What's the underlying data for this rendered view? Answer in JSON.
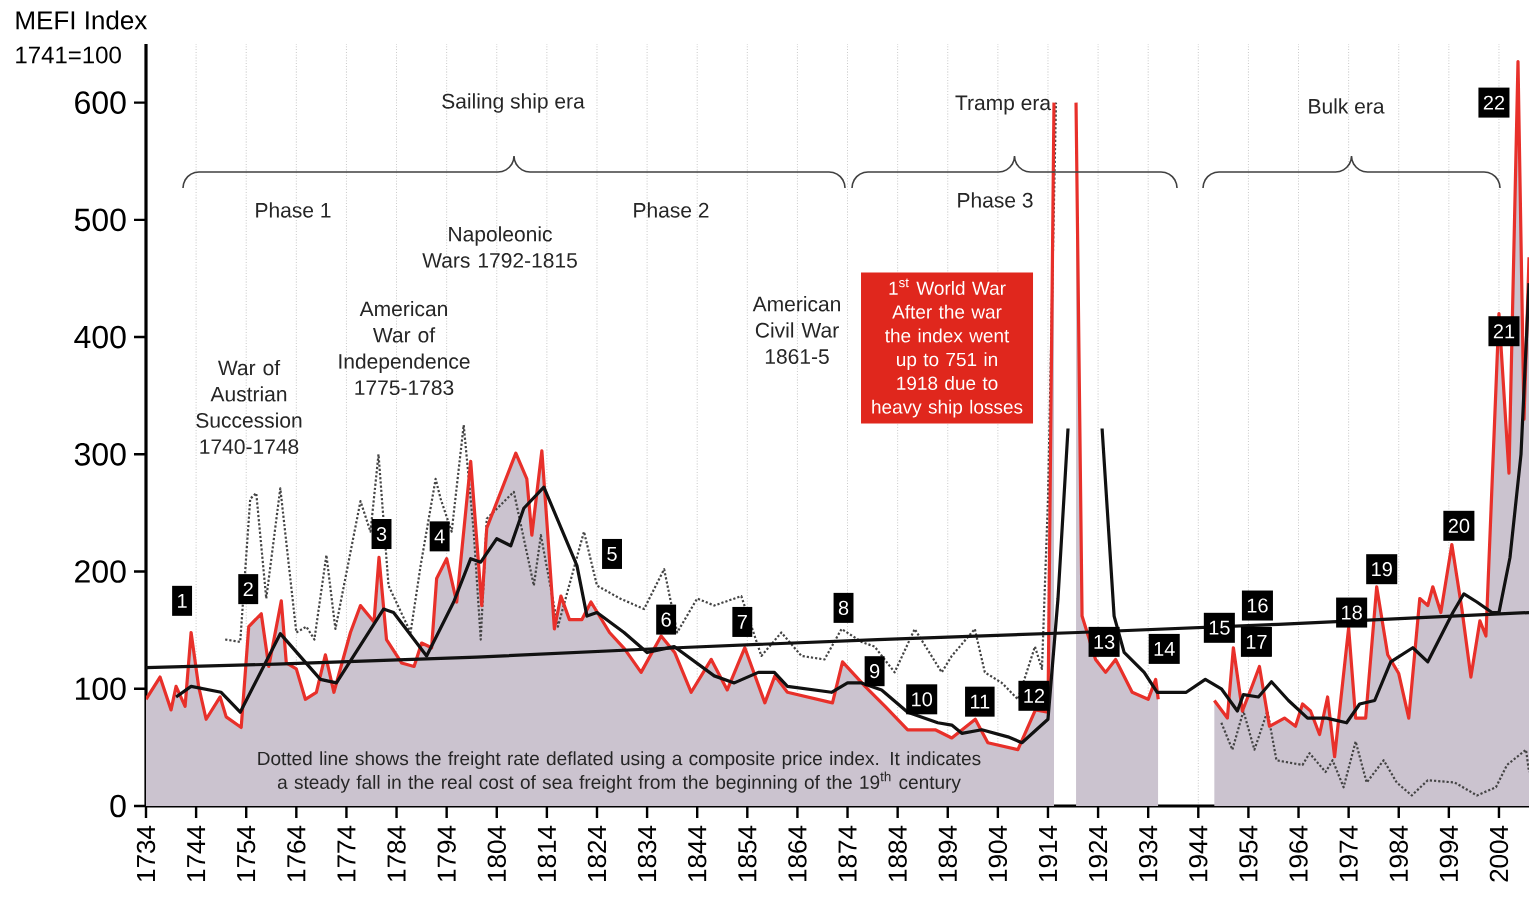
{
  "chart_data": {
    "type": "area",
    "title": "MEFI Index",
    "subtitle": "1741=100",
    "xlim": [
      1734,
      2010
    ],
    "ylim": [
      0,
      650
    ],
    "xticks": [
      1734,
      1744,
      1754,
      1764,
      1774,
      1784,
      1794,
      1804,
      1814,
      1824,
      1834,
      1844,
      1854,
      1864,
      1874,
      1884,
      1894,
      1904,
      1914,
      1924,
      1934,
      1944,
      1954,
      1964,
      1974,
      1984,
      1994,
      2004
    ],
    "yticks": [
      0,
      100,
      200,
      300,
      400,
      500,
      600
    ],
    "grid": "x",
    "series": [
      {
        "type": "line",
        "line_style": "dotted",
        "color": "#444444",
        "x": [
          1749.8,
          1752.8,
          1754.8,
          1756,
          1758,
          1760.8,
          1764,
          1766,
          1767.6,
          1770,
          1771.8,
          1776.8,
          1778.8,
          1780.4,
          1782.4,
          1786.8,
          1788.8,
          1791.8,
          1792.8,
          1795,
          1797.4,
          1799.4,
          1800.8,
          1802,
          1807.4,
          1811.4,
          1812.8,
          1816.2,
          1821.4,
          1824,
          1828.6,
          1833.4,
          1837.4,
          1840,
          1844,
          1847.4,
          1852.8,
          1856.8,
          1860.8,
          1864.8,
          1869.4,
          1872.8,
          1876.8,
          1879.4,
          1883.4,
          1887.4,
          1892.8,
          1894.8,
          1899.4,
          1901.4,
          1904.8,
          1908,
          1911.4,
          1912.8,
          1914,
          1915.6,
          1917.5,
          1919.5,
          1920.8,
          1924.8,
          1928.2,
          1935.4,
          1940,
          1948.6,
          1950.8,
          1953,
          1955.2,
          1957.8,
          1959.6,
          1964.8,
          1966.2,
          1969.4,
          1970.8,
          1973,
          1975.4,
          1977.6,
          1981,
          1983.6,
          1986.6,
          1989.8,
          1995.2,
          1999.6,
          2003.4,
          2005.6,
          2009.4,
          2010
        ],
        "values": [
          142,
          140,
          262,
          267,
          177,
          271,
          148,
          153,
          142,
          214,
          151,
          260,
          234,
          300,
          188,
          148,
          205,
          279,
          262,
          234,
          325,
          234,
          142,
          245,
          268,
          188,
          231,
          153,
          234,
          188,
          177,
          168,
          202,
          148,
          177,
          171,
          179,
          128,
          148,
          128,
          125,
          151,
          140,
          136,
          114,
          151,
          114,
          128,
          151,
          114,
          105,
          91,
          136,
          117,
          262,
          600,
          null,
          null,
          null,
          null,
          null,
          null,
          null,
          71,
          48,
          81,
          48,
          81,
          39,
          35,
          45,
          29,
          39,
          16,
          55,
          20,
          39,
          20,
          9,
          22,
          20,
          9,
          16,
          35,
          48,
          29
        ]
      },
      {
        "color": "#e8302a",
        "x": [
          1734,
          1736.8,
          1739,
          1740,
          1741.8,
          1743,
          1744.5,
          1746,
          1748.8,
          1750,
          1753,
          1754.5,
          1757,
          1758.5,
          1761,
          1762,
          1764,
          1765.8,
          1768,
          1769.8,
          1771.5,
          1774.8,
          1776.8,
          1779.5,
          1780.5,
          1782,
          1785,
          1787.5,
          1789,
          1791,
          1792,
          1794,
          1796,
          1798.8,
          1801,
          1802,
          1807.8,
          1810,
          1811,
          1813,
          1815.5,
          1816.8,
          1818.5,
          1821,
          1822.8,
          1826.5,
          1829.5,
          1832.8,
          1836.8,
          1839.5,
          1842.8,
          1846.8,
          1850,
          1853.5,
          1857.5,
          1859.5,
          1862,
          1871,
          1873,
          1877.5,
          1881.5,
          1886,
          1891.5,
          1894.8,
          1899.5,
          1902,
          1908,
          1911.5,
          1914,
          1915.2,
          1918,
          1919.6,
          1920.8,
          1923.5,
          1925.5,
          1927.5,
          1930.8,
          1934,
          1935.5,
          1936,
          1940,
          1947.2,
          1949.8,
          1951,
          1952.8,
          1954.8,
          1956.2,
          1958.2,
          1961.2,
          1963.4,
          1964.8,
          1966.4,
          1968.2,
          1969.8,
          1971.2,
          1974,
          1975.4,
          1977.4,
          1979.6,
          1981.8,
          1984,
          1986,
          1988.2,
          1989.8,
          1990.8,
          1992.4,
          1994.6,
          1996.6,
          1998.4,
          2000.2,
          2001.4,
          2004,
          2006,
          2007.8,
          2009,
          2010
        ],
        "values": [
          91,
          110,
          82,
          102,
          85,
          148,
          102,
          74,
          93,
          76,
          67,
          153,
          164,
          119,
          175,
          122,
          117,
          91,
          97,
          129,
          97,
          148,
          171,
          157,
          212,
          142,
          122,
          119,
          139,
          135,
          194,
          211,
          174,
          294,
          171,
          237,
          301,
          279,
          231,
          303,
          151,
          179,
          159,
          159,
          174,
          148,
          134,
          114,
          145,
          131,
          97,
          125,
          99,
          135,
          88,
          111,
          97,
          88,
          123,
          102,
          85,
          65,
          65,
          58,
          74,
          54,
          48,
          82,
          80,
          600,
          null,
          600,
          162,
          125,
          114,
          125,
          97,
          91,
          108,
          91,
          null,
          90,
          75,
          135,
          81,
          103,
          119,
          68,
          75,
          68,
          87,
          81,
          61,
          93,
          42,
          152,
          75,
          75,
          187,
          129,
          113,
          75,
          177,
          171,
          187,
          165,
          223,
          168,
          110,
          158,
          145,
          420,
          284,
          635,
          330,
          468
        ]
      },
      {
        "type": "line",
        "color": "#111111",
        "x": [
          1734,
          1760,
          1800,
          1840,
          1880,
          1920,
          1960,
          2010
        ],
        "values": [
          118,
          121,
          127,
          135,
          142,
          148,
          155,
          165
        ]
      },
      {
        "type": "line",
        "color": "#111111",
        "x": [
          1740,
          1743,
          1749,
          1752.8,
          1760.8,
          1768.8,
          1772,
          1781.4,
          1783.4,
          1790,
          1795.4,
          1798.8,
          1800.8,
          1804,
          1806.8,
          1809.4,
          1813.4,
          1820,
          1822,
          1824,
          1829.4,
          1834,
          1839.4,
          1847.4,
          1851.4,
          1856.2,
          1859.4,
          1862,
          1870.8,
          1874,
          1876.8,
          1880.8,
          1886,
          1892,
          1894.8,
          1896.8,
          1900.8,
          1906,
          1908.8,
          1914,
          1916,
          1918,
          1921,
          1924.8,
          1927.2,
          1929.2,
          1933.2,
          1935.8,
          1941.6,
          1945.4,
          1948.6,
          1951.8,
          1953,
          1956,
          1958.6,
          1962,
          1965.8,
          1969.6,
          1973.6,
          1976.2,
          1979.2,
          1982.4,
          1986.8,
          1989.8,
          1994.8,
          1997,
          1999.6,
          2002.6,
          2004,
          2006.2,
          2008.4,
          2010
        ],
        "values": [
          93,
          102,
          97,
          80,
          147,
          108,
          105,
          168,
          165,
          128,
          174,
          211,
          208,
          228,
          222,
          254,
          272,
          205,
          162,
          165,
          148,
          131,
          136,
          111,
          105,
          114,
          114,
          102,
          97,
          105,
          105,
          99,
          80,
          71,
          69,
          62,
          65,
          59,
          54,
          74,
          177,
          322,
          null,
          322,
          162,
          131,
          114,
          97,
          97,
          108,
          100,
          81,
          95,
          93,
          106,
          90,
          75,
          75,
          71,
          87,
          90,
          123,
          135,
          123,
          165,
          181,
          174,
          165,
          165,
          212,
          300,
          446
        ]
      }
    ],
    "annotations": [
      {
        "text": "1",
        "x": 1741.2,
        "y": 175
      },
      {
        "text": "2",
        "x": 1754.4,
        "y": 185
      },
      {
        "text": "3",
        "x": 1781,
        "y": 232
      },
      {
        "text": "4",
        "x": 1792.6,
        "y": 230
      },
      {
        "text": "5",
        "x": 1827,
        "y": 215
      },
      {
        "text": "6",
        "x": 1837.8,
        "y": 159
      },
      {
        "text": "7",
        "x": 1853,
        "y": 157
      },
      {
        "text": "8",
        "x": 1873.2,
        "y": 169
      },
      {
        "text": "9",
        "x": 1879.4,
        "y": 115
      },
      {
        "text": "10",
        "x": 1888.8,
        "y": 91
      },
      {
        "text": "11",
        "x": 1900.4,
        "y": 89
      },
      {
        "text": "12",
        "x": 1911.2,
        "y": 94
      },
      {
        "text": "13",
        "x": 1925.2,
        "y": 140
      },
      {
        "text": "14",
        "x": 1937.2,
        "y": 134
      },
      {
        "text": "15",
        "x": 1948.2,
        "y": 152
      },
      {
        "text": "16",
        "x": 1955.8,
        "y": 171
      },
      {
        "text": "17",
        "x": 1955.6,
        "y": 140
      },
      {
        "text": "18",
        "x": 1974.6,
        "y": 165
      },
      {
        "text": "19",
        "x": 1980.6,
        "y": 202
      },
      {
        "text": "20",
        "x": 1996,
        "y": 239
      },
      {
        "text": "21",
        "x": 2005,
        "y": 405
      },
      {
        "text": "22",
        "x": 2003,
        "y": 600
      },
      "Sailing ship era",
      "Tramp era",
      "Bulk era",
      "Phase 1",
      "Phase 2",
      "Phase 3",
      "Napoleonic Wars 1792-1815",
      "American War of Independence 1775-1783",
      "War of Austrian Succession 1740-1748",
      "American Civil War 1861-5",
      "1$^{st}$ World War",
      "After the war the index went up to 751 in 1918 due to heavy ship losses",
      "Dotted line shows the freight rate deflated using a composite price index. It indicates a steady fall in the real cost of sea freight from the beginning of the 19$^{th}$ century"
    ]
  }
}
